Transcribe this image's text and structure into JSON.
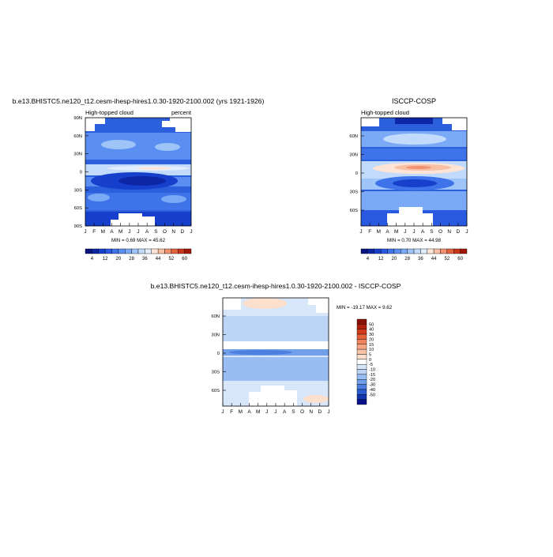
{
  "chart_data": [
    {
      "type": "heatmap",
      "title": "b.e13.BHISTC5.ne120_t12.cesm-ihesp-hires1.0.30-1920-2100.002 (yrs 1921-1926)",
      "left_label": "High-topped cloud",
      "right_label": "percent",
      "x_ticks": [
        "J",
        "F",
        "M",
        "A",
        "M",
        "J",
        "J",
        "A",
        "S",
        "O",
        "N",
        "D",
        "J"
      ],
      "y_ticks": [
        "90N",
        "60N",
        "30N",
        "0",
        "30S",
        "60S",
        "90S"
      ],
      "min_max_label": "MIN =   0.69 MAX =  45.62",
      "colorbar": {
        "orientation": "horizontal",
        "labels": [
          "4",
          "12",
          "20",
          "28",
          "36",
          "44",
          "52",
          "60"
        ],
        "levels": [
          4,
          8,
          12,
          16,
          20,
          24,
          28,
          32,
          36,
          40,
          44,
          48,
          52,
          56,
          60
        ],
        "colors": [
          "#08137f",
          "#0d26a6",
          "#163fcb",
          "#2859e0",
          "#3f73ea",
          "#5a8ef0",
          "#7aaaf5",
          "#9ec4f8",
          "#c2dafb",
          "#e2eefd",
          "#fde4d6",
          "#f8c0a4",
          "#f19272",
          "#e3623e",
          "#c8361b",
          "#a3170b"
        ]
      }
    },
    {
      "type": "heatmap",
      "title": "ISCCP-COSP",
      "left_label": "High-topped cloud",
      "x_ticks": [
        "J",
        "F",
        "M",
        "A",
        "M",
        "J",
        "J",
        "A",
        "S",
        "O",
        "N",
        "D",
        "J"
      ],
      "y_ticks": [
        "60N",
        "30N",
        "0",
        "30S",
        "60S"
      ],
      "min_max_label": "MIN =   0.70 MAX =  44.98",
      "colorbar": {
        "orientation": "horizontal",
        "labels": [
          "4",
          "12",
          "20",
          "28",
          "36",
          "44",
          "52",
          "60"
        ]
      }
    },
    {
      "type": "heatmap",
      "title": "b.e13.BHISTC5.ne120_t12.cesm-ihesp-hires1.0.30-1920-2100.002 - ISCCP-COSP",
      "x_ticks": [
        "J",
        "F",
        "M",
        "A",
        "M",
        "J",
        "J",
        "A",
        "S",
        "O",
        "N",
        "D",
        "J"
      ],
      "y_ticks": [
        "60N",
        "30N",
        "0",
        "30S",
        "60S"
      ],
      "min_max_label": "MIN = -19.17 MAX =   9.62",
      "colorbar": {
        "orientation": "vertical",
        "labels": [
          "50",
          "40",
          "30",
          "20",
          "15",
          "10",
          "5",
          "0",
          "-5",
          "-10",
          "-15",
          "-20",
          "-30",
          "-40",
          "-50"
        ],
        "colors": [
          "#8a1004",
          "#b11f0c",
          "#d23a1c",
          "#e6603a",
          "#f08560",
          "#f6a585",
          "#f9c3a8",
          "#fcdfcc",
          "#ffffff",
          "#d8e6fa",
          "#bcd4f6",
          "#99bdf2",
          "#729fea",
          "#4c7fe0",
          "#2a5bd0",
          "#1236b0",
          "#07118a"
        ]
      }
    }
  ]
}
